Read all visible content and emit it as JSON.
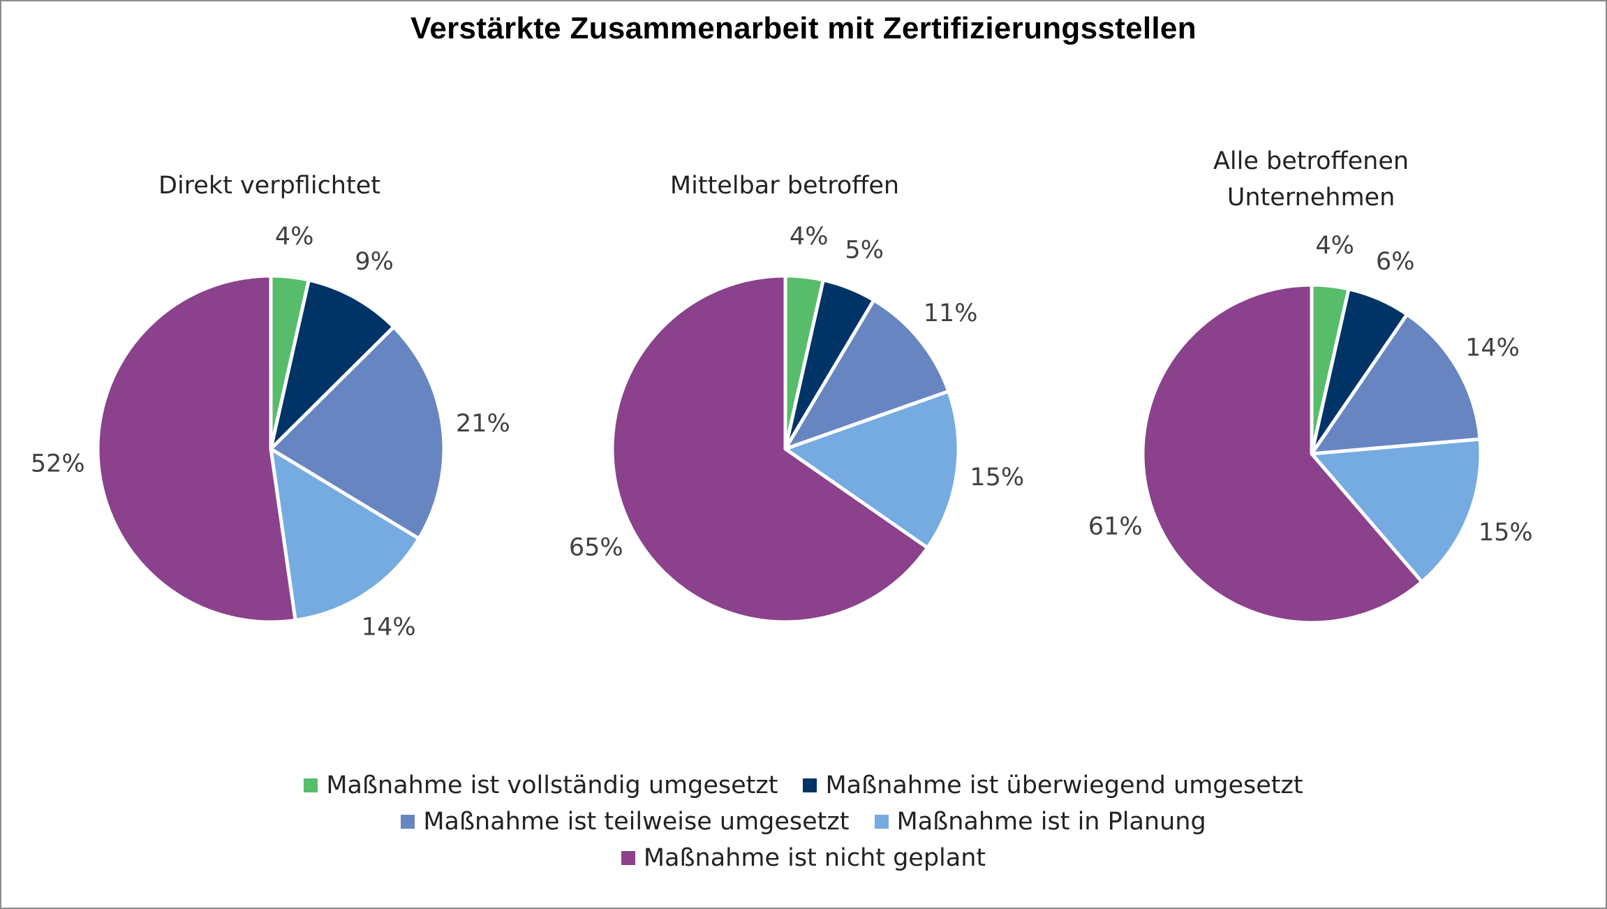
{
  "chart_data": {
    "type": "pie",
    "title": "Verstärkte Zusammenarbeit mit Zertifizierungsstellen",
    "categories": [
      "Maßnahme ist vollständig umgesetzt",
      "Maßnahme ist überwiegend umgesetzt",
      "Maßnahme ist teilweise umgesetzt",
      "Maßnahme ist in Planung",
      "Maßnahme ist nicht geplant"
    ],
    "colors": [
      "#57bd6a",
      "#003366",
      "#6785c1",
      "#75abe0",
      "#8b418b"
    ],
    "pies": [
      {
        "title_lines": [
          "Direkt verpflichtet"
        ],
        "values": [
          3.5,
          9,
          21,
          14,
          52
        ],
        "labels": [
          "4%",
          "9%",
          "21%",
          "14%",
          "52%"
        ]
      },
      {
        "title_lines": [
          "Mittelbar betroffen"
        ],
        "values": [
          3.5,
          5,
          11,
          15,
          65
        ],
        "labels": [
          "4%",
          "5%",
          "11%",
          "15%",
          "65%"
        ]
      },
      {
        "title_lines": [
          "Alle betroffenen",
          "Unternehmen"
        ],
        "values": [
          3.5,
          6,
          14,
          15,
          61
        ],
        "labels": [
          "4%",
          "6%",
          "14%",
          "15%",
          "61%"
        ]
      }
    ],
    "legend_position": "bottom"
  }
}
